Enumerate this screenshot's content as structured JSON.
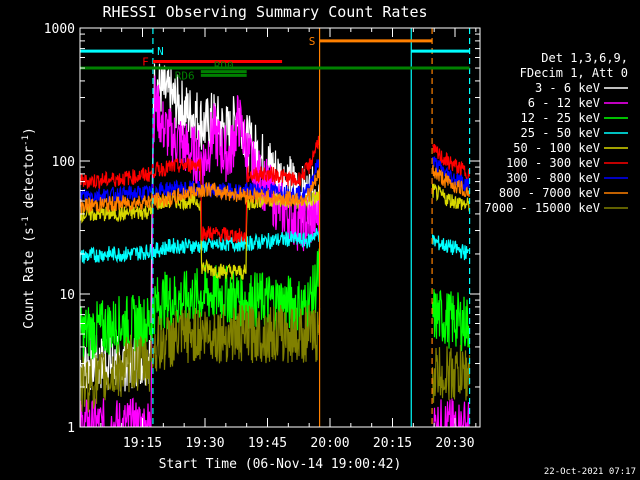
{
  "chart_data": {
    "type": "line",
    "title": "RHESSI Observing Summary Count Rates",
    "xlabel": "Start Time (06-Nov-14 19:00:42)",
    "ylabel": "Count Rate (s⁻¹ detector⁻¹)",
    "ylabel_main": "Count Rate (s",
    "ylabel_sup1": "-1",
    "ylabel_mid": " detector",
    "ylabel_sup2": "-1",
    "ylabel_end": ")",
    "y_scale": "log",
    "ylim": [
      1,
      1000
    ],
    "xlim": [
      0,
      96
    ],
    "x_ticks": [
      {
        "t": 15,
        "label": "19:15"
      },
      {
        "t": 30,
        "label": "19:30"
      },
      {
        "t": 45,
        "label": "19:45"
      },
      {
        "t": 60,
        "label": "20:00"
      },
      {
        "t": 75,
        "label": "20:15"
      },
      {
        "t": 90,
        "label": "20:30"
      }
    ],
    "x_minor_step": 5,
    "y_ticks": [
      {
        "v": 1,
        "label": "1"
      },
      {
        "v": 10,
        "label": "10"
      },
      {
        "v": 100,
        "label": "100"
      },
      {
        "v": 1000,
        "label": "1000"
      }
    ],
    "timestamp": "22-Oct-2021 07:17",
    "legend": {
      "placement": "right",
      "header": [
        "Det 1,3,6,9,",
        "FDecim 1, Att 0"
      ],
      "entries": [
        {
          "label": "3 - 6 keV",
          "color": "#ffffff"
        },
        {
          "label": "6 - 12 keV",
          "color": "#ff00ff"
        },
        {
          "label": "12 - 25 keV",
          "color": "#00ff00"
        },
        {
          "label": "25 - 50 keV",
          "color": "#00ffff"
        },
        {
          "label": "50 - 100 keV",
          "color": "#d8d800"
        },
        {
          "label": "100 - 300 keV",
          "color": "#ff0000"
        },
        {
          "label": "300 - 800 keV",
          "color": "#0000ff"
        },
        {
          "label": "800 - 7000 keV",
          "color": "#ff8000"
        },
        {
          "label": "7000 - 15000 keV",
          "color": "#808000"
        }
      ]
    },
    "data_gaps": [
      [
        57.5,
        84.5
      ]
    ],
    "vertical_lines": [
      {
        "t": 17.5,
        "color": "#00ffff",
        "style": "dashed"
      },
      {
        "t": 57.5,
        "color": "#ff8000",
        "style": "solid"
      },
      {
        "t": 79.5,
        "color": "#00ffff",
        "style": "solid"
      },
      {
        "t": 84.5,
        "color": "#ff8000",
        "style": "dashed"
      },
      {
        "t": 93.5,
        "color": "#00ffff",
        "style": "dashed"
      }
    ],
    "flag_bars": [
      {
        "label": "N",
        "color": "#00ffff",
        "level": 670,
        "segments": [
          [
            0,
            17.5
          ],
          [
            79.5,
            93.5
          ]
        ],
        "label_t": 18.5,
        "label_side": "right"
      },
      {
        "label": "S",
        "color": "#ff8000",
        "level": 800,
        "segments": [
          [
            57.5,
            84.5
          ]
        ],
        "label_t": 56.5,
        "label_side": "left"
      },
      {
        "label": "F",
        "color": "#ff0000",
        "level": 560,
        "segments": [
          [
            17.5,
            48.5
          ]
        ],
        "label_t": 16.5,
        "label_side": "left"
      },
      {
        "label": "",
        "color": "#008000",
        "level": 500,
        "segments": [
          [
            0,
            93.5
          ]
        ],
        "label_t": 0,
        "label_side": "none"
      },
      {
        "label": "RD0",
        "color": "#008000",
        "level": 470,
        "segments": [
          [
            29,
            40
          ]
        ],
        "label_t": 34.5,
        "label_side": "above"
      },
      {
        "label": "RD6",
        "color": "#008000",
        "level": 440,
        "segments": [
          [
            29,
            40
          ]
        ],
        "label_t": 27.5,
        "label_side": "left"
      }
    ],
    "series": [
      {
        "name": "3 - 6 keV",
        "color": "#ffffff",
        "points": [
          [
            0,
            3
          ],
          [
            10,
            3
          ],
          [
            17,
            3.5
          ],
          [
            17.6,
            320
          ],
          [
            18,
            390
          ],
          [
            20,
            330
          ],
          [
            22,
            300
          ],
          [
            24,
            260
          ],
          [
            26,
            230
          ],
          [
            28,
            220
          ],
          [
            30,
            180
          ],
          [
            32,
            210
          ],
          [
            34,
            180
          ],
          [
            36,
            160
          ],
          [
            38,
            240
          ],
          [
            39,
            200
          ],
          [
            40,
            140
          ],
          [
            42,
            120
          ],
          [
            44,
            100
          ],
          [
            46,
            90
          ],
          [
            48,
            75
          ],
          [
            50,
            70
          ],
          [
            52,
            60
          ],
          [
            54,
            55
          ],
          [
            56,
            55
          ],
          [
            57.4,
            54
          ]
        ]
      },
      {
        "name": "6 - 12 keV",
        "color": "#ff00ff",
        "points": [
          [
            0,
            1
          ],
          [
            17,
            1
          ],
          [
            17.6,
            200
          ],
          [
            18,
            280
          ],
          [
            20,
            180
          ],
          [
            22,
            150
          ],
          [
            24,
            140
          ],
          [
            26,
            120
          ],
          [
            28,
            110
          ],
          [
            30,
            100
          ],
          [
            32,
            170
          ],
          [
            34,
            120
          ],
          [
            36,
            110
          ],
          [
            38,
            210
          ],
          [
            39,
            160
          ],
          [
            40,
            120
          ],
          [
            42,
            80
          ],
          [
            44,
            70
          ],
          [
            46,
            55
          ],
          [
            48,
            45
          ],
          [
            50,
            40
          ],
          [
            52,
            35
          ],
          [
            54,
            34
          ],
          [
            56,
            37
          ],
          [
            57.4,
            38
          ],
          [
            84.6,
            1
          ],
          [
            90,
            1
          ],
          [
            93.5,
            1
          ]
        ]
      },
      {
        "name": "12 - 25 keV",
        "color": "#00ff00",
        "points": [
          [
            0,
            5
          ],
          [
            10,
            6
          ],
          [
            17,
            6
          ],
          [
            17.6,
            8
          ],
          [
            20,
            9
          ],
          [
            25,
            9
          ],
          [
            30,
            10
          ],
          [
            35,
            10
          ],
          [
            40,
            9
          ],
          [
            45,
            9
          ],
          [
            50,
            8.5
          ],
          [
            54,
            8
          ],
          [
            56,
            10
          ],
          [
            57.4,
            15
          ],
          [
            84.6,
            7
          ],
          [
            88,
            6.5
          ],
          [
            93.5,
            6
          ]
        ]
      },
      {
        "name": "25 - 50 keV",
        "color": "#00ffff",
        "points": [
          [
            0,
            19
          ],
          [
            6,
            20
          ],
          [
            12,
            20
          ],
          [
            17,
            21
          ],
          [
            17.6,
            21
          ],
          [
            22,
            23
          ],
          [
            30,
            23
          ],
          [
            35,
            24
          ],
          [
            40,
            24
          ],
          [
            45,
            25
          ],
          [
            50,
            26
          ],
          [
            55,
            25
          ],
          [
            56,
            28
          ],
          [
            57.4,
            28
          ],
          [
            84.6,
            25
          ],
          [
            88,
            23
          ],
          [
            93.5,
            20
          ]
        ]
      },
      {
        "name": "50 - 100 keV",
        "color": "#d8d800",
        "points": [
          [
            0,
            40
          ],
          [
            10,
            40
          ],
          [
            17,
            42
          ],
          [
            17.6,
            48
          ],
          [
            22,
            50
          ],
          [
            28,
            50
          ],
          [
            29,
            48
          ],
          [
            29.1,
            16
          ],
          [
            33,
            15
          ],
          [
            39.9,
            14.5
          ],
          [
            40,
            48
          ],
          [
            45,
            52
          ],
          [
            50,
            50
          ],
          [
            54,
            50
          ],
          [
            56,
            52
          ],
          [
            57.4,
            54
          ],
          [
            84.6,
            60
          ],
          [
            88,
            52
          ],
          [
            93.5,
            46
          ]
        ]
      },
      {
        "name": "100 - 300 keV",
        "color": "#ff0000",
        "points": [
          [
            0,
            70
          ],
          [
            6,
            72
          ],
          [
            12,
            75
          ],
          [
            17,
            80
          ],
          [
            17.6,
            85
          ],
          [
            22,
            90
          ],
          [
            28,
            95
          ],
          [
            29,
            96
          ],
          [
            29.1,
            29
          ],
          [
            34,
            28
          ],
          [
            39.9,
            27
          ],
          [
            40,
            78
          ],
          [
            44,
            80
          ],
          [
            48,
            78
          ],
          [
            52,
            70
          ],
          [
            55,
            90
          ],
          [
            57.4,
            150
          ],
          [
            84.6,
            120
          ],
          [
            88,
            100
          ],
          [
            93.5,
            80
          ]
        ]
      },
      {
        "name": "300 - 800 keV",
        "color": "#0000ff",
        "points": [
          [
            0,
            55
          ],
          [
            10,
            56
          ],
          [
            17,
            58
          ],
          [
            17.6,
            60
          ],
          [
            22,
            62
          ],
          [
            28,
            62
          ],
          [
            30,
            60
          ],
          [
            35,
            60
          ],
          [
            40,
            60
          ],
          [
            45,
            60
          ],
          [
            50,
            58
          ],
          [
            54,
            56
          ],
          [
            55,
            65
          ],
          [
            57.4,
            100
          ],
          [
            84.6,
            100
          ],
          [
            88,
            80
          ],
          [
            93.5,
            65
          ]
        ]
      },
      {
        "name": "800 - 7000 keV",
        "color": "#ff8000",
        "points": [
          [
            0,
            46
          ],
          [
            10,
            48
          ],
          [
            17,
            50
          ],
          [
            22,
            52
          ],
          [
            26,
            58
          ],
          [
            30,
            62
          ],
          [
            32,
            60
          ],
          [
            35,
            58
          ],
          [
            38,
            56
          ],
          [
            42,
            55
          ],
          [
            46,
            53
          ],
          [
            50,
            52
          ],
          [
            53,
            52
          ],
          [
            55,
            56
          ],
          [
            57.4,
            80
          ],
          [
            84.6,
            85
          ],
          [
            88,
            70
          ],
          [
            93.5,
            58
          ]
        ]
      },
      {
        "name": "7000 - 15000 keV",
        "color": "#808000",
        "points": [
          [
            0,
            2
          ],
          [
            8,
            2.5
          ],
          [
            12,
            3
          ],
          [
            17,
            3
          ],
          [
            17.6,
            4
          ],
          [
            22,
            4.5
          ],
          [
            28,
            5
          ],
          [
            34,
            5
          ],
          [
            40,
            5
          ],
          [
            46,
            5
          ],
          [
            52,
            5
          ],
          [
            56,
            5
          ],
          [
            57.4,
            5
          ],
          [
            84.6,
            2.5
          ],
          [
            88,
            2.5
          ],
          [
            93.5,
            2.5
          ]
        ]
      }
    ]
  }
}
